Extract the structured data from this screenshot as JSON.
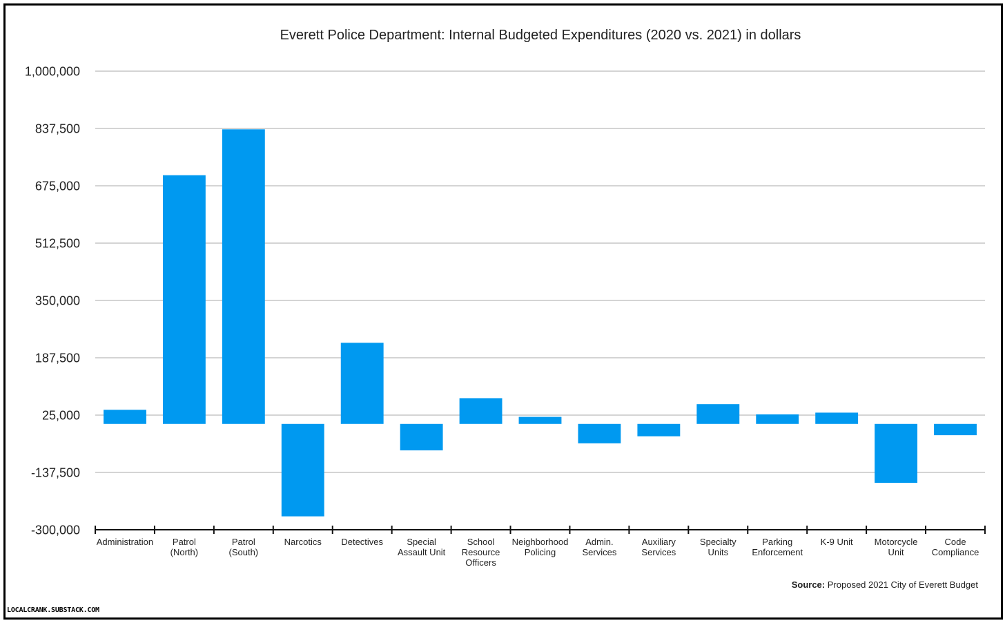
{
  "chart_data": {
    "type": "bar",
    "title": "Everett Police Department: Internal Budgeted Expenditures (2020 vs. 2021) in dollars",
    "xlabel": "",
    "ylabel": "",
    "ylim": [
      -300000,
      1000000
    ],
    "yticks": [
      "1,000,000",
      "837,500",
      "675,000",
      "512,500",
      "350,000",
      "187,500",
      "25,000",
      "-137,500",
      "-300,000"
    ],
    "ytick_values": [
      1000000,
      837500,
      675000,
      512500,
      350000,
      187500,
      25000,
      -137500,
      -300000
    ],
    "baseline": 0,
    "grid": true,
    "bar_color": "#0099f0",
    "categories": [
      [
        "Administration"
      ],
      [
        "Patrol",
        "(North)"
      ],
      [
        "Patrol",
        "(South)"
      ],
      [
        "Narcotics"
      ],
      [
        "Detectives"
      ],
      [
        "Special",
        "Assault Unit"
      ],
      [
        "School",
        "Resource",
        "Officers"
      ],
      [
        "Neighborhood",
        "Policing"
      ],
      [
        "Admin.",
        "Services"
      ],
      [
        "Auxiliary",
        "Services"
      ],
      [
        "Specialty",
        "Units"
      ],
      [
        "Parking",
        "Enforcement"
      ],
      [
        "K-9 Unit"
      ],
      [
        "Motorcycle",
        "Unit"
      ],
      [
        "Code",
        "Compliance"
      ]
    ],
    "values": [
      40000,
      705000,
      835000,
      -262000,
      230000,
      -75000,
      73000,
      20000,
      -55000,
      -35000,
      56000,
      27000,
      32000,
      -167000,
      -32000
    ]
  },
  "source": {
    "label": "Source:",
    "text": "Proposed 2021 City of Everett Budget"
  },
  "credit": "LOCALCRANK.SUBSTACK.COM"
}
